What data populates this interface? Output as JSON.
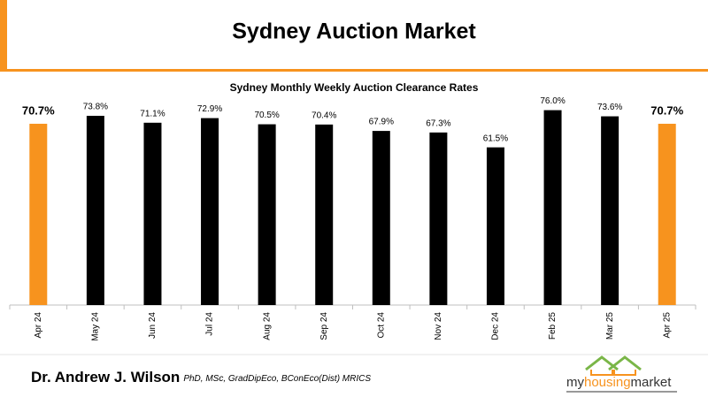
{
  "header": {
    "title": "Sydney Auction Market"
  },
  "chart_data": {
    "type": "bar",
    "title": "Sydney Monthly Weekly Auction Clearance Rates",
    "categories": [
      "Apr 24",
      "May 24",
      "Jun 24",
      "Jul 24",
      "Aug 24",
      "Sep 24",
      "Oct 24",
      "Nov 24",
      "Dec 24",
      "Feb 25",
      "Mar 25",
      "Apr 25"
    ],
    "values": [
      70.7,
      73.8,
      71.1,
      72.9,
      70.5,
      70.4,
      67.9,
      67.3,
      61.5,
      76.0,
      73.6,
      70.7
    ],
    "value_labels": [
      "70.7%",
      "73.8%",
      "71.1%",
      "72.9%",
      "70.5%",
      "70.4%",
      "67.9%",
      "67.3%",
      "61.5%",
      "76.0%",
      "73.6%",
      "70.7%"
    ],
    "colors": [
      "#f7931e",
      "#000000",
      "#000000",
      "#000000",
      "#000000",
      "#000000",
      "#000000",
      "#000000",
      "#000000",
      "#000000",
      "#000000",
      "#f7931e"
    ],
    "color": "#000000",
    "ylim": [
      0,
      80
    ]
  },
  "footer": {
    "author": "Dr. Andrew J. Wilson",
    "credentials": "PhD, MSc, GradDipEco, BConEco(Dist) MRICS",
    "logo": [
      "my",
      "housing",
      "market"
    ]
  }
}
